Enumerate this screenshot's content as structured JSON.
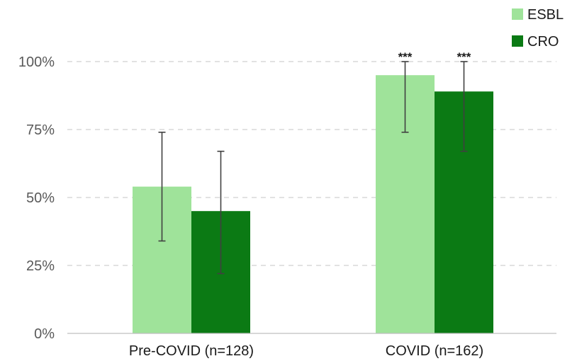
{
  "chart_data": {
    "type": "bar",
    "categories": [
      "Pre-COVID (n=128)",
      "COVID (n=162)"
    ],
    "series": [
      {
        "name": "ESBL",
        "color": "#9fe39a",
        "values": [
          54,
          95
        ],
        "error_low": [
          34,
          74
        ],
        "error_high": [
          74,
          100
        ],
        "significance": [
          "",
          "***"
        ]
      },
      {
        "name": "CRO",
        "color": "#0b7a14",
        "values": [
          45,
          89
        ],
        "error_low": [
          22,
          67
        ],
        "error_high": [
          67,
          100
        ],
        "significance": [
          "",
          "***"
        ]
      }
    ],
    "ylim": [
      0,
      100
    ],
    "yticks": [
      "0%",
      "25%",
      "50%",
      "75%",
      "100%"
    ],
    "ytick_values": [
      0,
      25,
      50,
      75,
      100
    ],
    "grid": "dashed horizontal",
    "legend_position": "top-right"
  }
}
